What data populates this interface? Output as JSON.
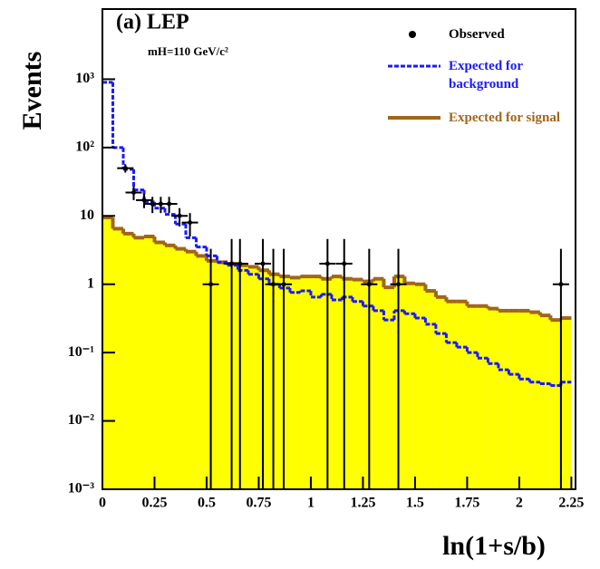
{
  "chart_data": {
    "type": "histogram",
    "title": "(a) LEP",
    "subtitle": "mH=110 GeV/c²",
    "y_label": "Events",
    "x_label": "ln(1+s/b)",
    "log_y": true,
    "xlim": [
      0,
      2.27
    ],
    "ylim": [
      0.001,
      10000
    ],
    "xticks": [
      0,
      0.25,
      0.5,
      0.75,
      1,
      1.25,
      1.5,
      1.75,
      2,
      2.25
    ],
    "yticks": [
      {
        "value": 1000,
        "label": "10³"
      },
      {
        "value": 100,
        "label": "10²"
      },
      10,
      1,
      {
        "value": 0.1,
        "label": "10⁻¹"
      },
      {
        "value": 0.01,
        "label": "10⁻²"
      },
      {
        "value": 0.001,
        "label": "10⁻³"
      }
    ],
    "bins": [
      0,
      0.05,
      0.1,
      0.15,
      0.2,
      0.25,
      0.3,
      0.35,
      0.4,
      0.45,
      0.5,
      0.55,
      0.6,
      0.65,
      0.7,
      0.75,
      0.8,
      0.85,
      0.9,
      0.95,
      1,
      1.05,
      1.1,
      1.15,
      1.2,
      1.25,
      1.3,
      1.35,
      1.4,
      1.45,
      1.5,
      1.55,
      1.6,
      1.65,
      1.7,
      1.75,
      1.8,
      1.85,
      1.9,
      1.95,
      2,
      2.05,
      2.1,
      2.15,
      2.2,
      2.25
    ],
    "series": [
      {
        "name": "Expected for signal",
        "color": "#a0661a",
        "fill": "#ffff00",
        "values": [
          9.5,
          6.5,
          5.5,
          4.8,
          5,
          4.1,
          3.7,
          3.3,
          3,
          2.6,
          2.2,
          2.1,
          2,
          1.9,
          1.8,
          1.6,
          1.4,
          1.3,
          1.25,
          1.3,
          1.3,
          1.2,
          1.3,
          1.2,
          1.17,
          1.1,
          1.2,
          0.9,
          1.3,
          1.03,
          1,
          0.8,
          0.65,
          0.56,
          0.56,
          0.48,
          0.48,
          0.44,
          0.41,
          0.41,
          0.41,
          0.39,
          0.35,
          0.3,
          0.32
        ]
      },
      {
        "name": "Expected for background",
        "color": "#1a1aff",
        "dashed": true,
        "values": [
          900,
          100,
          48,
          24,
          16,
          13,
          10.5,
          7.6,
          4.8,
          3.5,
          2.6,
          2.1,
          1.9,
          1.6,
          1.4,
          1.2,
          1.0,
          0.88,
          0.76,
          0.8,
          0.65,
          0.71,
          0.59,
          0.65,
          0.56,
          0.48,
          0.41,
          0.3,
          0.41,
          0.37,
          0.32,
          0.26,
          0.19,
          0.14,
          0.12,
          0.1,
          0.083,
          0.069,
          0.056,
          0.048,
          0.041,
          0.037,
          0.035,
          0.033,
          0.037
        ]
      }
    ],
    "observed": {
      "name": "Observed",
      "color": "#000000",
      "x": [
        0.11,
        0.15,
        0.2,
        0.24,
        0.28,
        0.32,
        0.37,
        0.42,
        0.52,
        0.62,
        0.66,
        0.77,
        0.82,
        0.87,
        1.08,
        1.16,
        1.28,
        1.42,
        2.2
      ],
      "values": [
        50,
        22,
        17,
        15,
        15,
        15,
        10,
        8,
        1,
        2,
        2,
        2,
        1,
        1,
        2,
        2,
        1,
        1,
        1
      ],
      "errors": [
        7,
        5,
        4,
        4,
        4,
        4,
        3,
        3,
        2.3,
        2.6,
        2.6,
        2.6,
        2.3,
        2.3,
        2.6,
        2.6,
        2.3,
        2.3,
        2.3
      ]
    }
  }
}
